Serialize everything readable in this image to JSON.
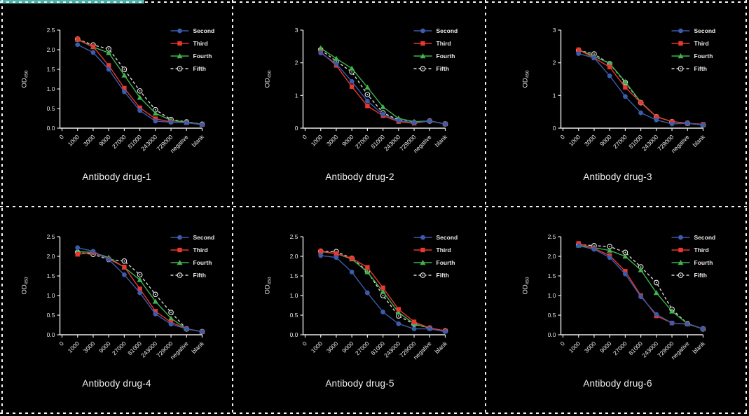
{
  "figure": {
    "background": "#000000",
    "border_color": "#f5f5f5",
    "accent_bar_color": "#4fb3ac",
    "text_color": "#eaeaea",
    "axis_color": "#e8e8e8"
  },
  "legend": {
    "position": "top-right",
    "entries": [
      {
        "label": "Second",
        "marker": "circle",
        "color": "#3b5bab",
        "dashed": false
      },
      {
        "label": "Third",
        "marker": "square",
        "color": "#e8372f",
        "dashed": false
      },
      {
        "label": "Fourth",
        "marker": "triangle",
        "color": "#41b24e",
        "dashed": false
      },
      {
        "label": "Fifth",
        "marker": "open-circle",
        "color": "#d6d6d6",
        "dashed": true
      }
    ]
  },
  "chart_data": [
    {
      "type": "line",
      "title": "Antibody drug-1",
      "ylabel": "OD",
      "ylabel_sub": "450",
      "xlabel": "",
      "grid": false,
      "ylim": [
        0,
        2.5
      ],
      "ytick_labels": [
        "0.0",
        "0.5",
        "1.0",
        "1.5",
        "2.0",
        "2.5"
      ],
      "yticks": [
        0,
        0.5,
        1.0,
        1.5,
        2.0,
        2.5
      ],
      "categories": [
        "0",
        "1000",
        "3000",
        "9000",
        "27000",
        "81000",
        "243000",
        "729000",
        "negative",
        "blank"
      ],
      "series": [
        {
          "name": "Second",
          "values": [
            2.13,
            1.93,
            1.5,
            0.93,
            0.45,
            0.18,
            0.15,
            0.14,
            0.09
          ]
        },
        {
          "name": "Third",
          "values": [
            2.27,
            2.08,
            1.6,
            1.02,
            0.52,
            0.24,
            0.16,
            0.14,
            0.09
          ]
        },
        {
          "name": "Fourth",
          "values": [
            2.26,
            2.07,
            1.92,
            1.35,
            0.78,
            0.38,
            0.2,
            0.15,
            0.1
          ]
        },
        {
          "name": "Fifth",
          "values": [
            2.27,
            2.12,
            2.02,
            1.5,
            0.95,
            0.47,
            0.22,
            0.16,
            0.1
          ]
        }
      ]
    },
    {
      "type": "line",
      "title": "Antibody drug-2",
      "ylabel": "OD",
      "ylabel_sub": "450",
      "xlabel": "",
      "grid": false,
      "ylim": [
        0,
        3
      ],
      "ytick_labels": [
        "0",
        "1",
        "2",
        "3"
      ],
      "yticks": [
        0,
        1,
        2,
        3
      ],
      "categories": [
        "0",
        "1000",
        "3000",
        "9000",
        "27000",
        "81000",
        "243000",
        "729000",
        "negative",
        "blank"
      ],
      "series": [
        {
          "name": "Second",
          "values": [
            2.3,
            1.97,
            1.43,
            0.83,
            0.42,
            0.23,
            0.17,
            0.22,
            0.13
          ]
        },
        {
          "name": "Third",
          "values": [
            2.33,
            1.92,
            1.27,
            0.68,
            0.38,
            0.2,
            0.15,
            0.22,
            0.13
          ]
        },
        {
          "name": "Fourth",
          "values": [
            2.45,
            2.13,
            1.83,
            1.25,
            0.65,
            0.3,
            0.2,
            0.22,
            0.13
          ]
        },
        {
          "name": "Fifth",
          "values": [
            2.4,
            2.05,
            1.72,
            1.03,
            0.47,
            0.25,
            0.17,
            0.22,
            0.13
          ]
        }
      ]
    },
    {
      "type": "line",
      "title": "Antibody drug-3",
      "ylabel": "OD",
      "ylabel_sub": "450",
      "xlabel": "",
      "grid": false,
      "ylim": [
        0,
        3
      ],
      "ytick_labels": [
        "0",
        "1",
        "2",
        "3"
      ],
      "yticks": [
        0,
        1,
        2,
        3
      ],
      "categories": [
        "0",
        "1000",
        "3000",
        "9000",
        "27000",
        "81000",
        "243000",
        "729000",
        "negative",
        "blank"
      ],
      "series": [
        {
          "name": "Second",
          "values": [
            2.28,
            2.15,
            1.6,
            0.97,
            0.47,
            0.25,
            0.13,
            0.15,
            0.1
          ]
        },
        {
          "name": "Third",
          "values": [
            2.4,
            2.15,
            1.87,
            1.25,
            0.78,
            0.35,
            0.2,
            0.15,
            0.12
          ]
        },
        {
          "name": "Fourth",
          "values": [
            2.4,
            2.2,
            1.98,
            1.42,
            0.8,
            0.35,
            0.2,
            0.15,
            0.1
          ]
        },
        {
          "name": "Fifth",
          "values": [
            2.38,
            2.27,
            1.97,
            1.4,
            0.78,
            0.35,
            0.2,
            0.15,
            0.1
          ]
        }
      ]
    },
    {
      "type": "line",
      "title": "Antibody drug-4",
      "ylabel": "OD",
      "ylabel_sub": "450",
      "xlabel": "",
      "grid": false,
      "ylim": [
        0,
        2.5
      ],
      "ytick_labels": [
        "0.0",
        "0.5",
        "1.0",
        "1.5",
        "2.0",
        "2.5"
      ],
      "yticks": [
        0,
        0.5,
        1.0,
        1.5,
        2.0,
        2.5
      ],
      "categories": [
        "0",
        "1000",
        "3000",
        "9000",
        "27000",
        "81000",
        "243000",
        "729000",
        "negative",
        "blank"
      ],
      "series": [
        {
          "name": "Second",
          "values": [
            2.22,
            2.13,
            1.92,
            1.53,
            1.07,
            0.53,
            0.27,
            0.15,
            0.08
          ]
        },
        {
          "name": "Third",
          "values": [
            2.05,
            2.1,
            1.93,
            1.73,
            1.17,
            0.6,
            0.32,
            0.15,
            0.08
          ]
        },
        {
          "name": "Fourth",
          "values": [
            2.12,
            2.1,
            1.97,
            1.72,
            1.4,
            0.85,
            0.42,
            0.15,
            0.08
          ]
        },
        {
          "name": "Fifth",
          "values": [
            2.1,
            2.05,
            1.92,
            1.88,
            1.53,
            1.03,
            0.57,
            0.15,
            0.08
          ]
        }
      ]
    },
    {
      "type": "line",
      "title": "Antibody drug-5",
      "ylabel": "OD",
      "ylabel_sub": "450",
      "xlabel": "",
      "grid": false,
      "ylim": [
        0,
        2.5
      ],
      "ytick_labels": [
        "0.0",
        "0.5",
        "1.0",
        "1.5",
        "2.0",
        "2.5"
      ],
      "yticks": [
        0,
        0.5,
        1.0,
        1.5,
        2.0,
        2.5
      ],
      "categories": [
        "0",
        "1000",
        "3000",
        "9000",
        "27000",
        "81000",
        "243000",
        "729000",
        "negative",
        "blank"
      ],
      "series": [
        {
          "name": "Second",
          "values": [
            2.02,
            1.97,
            1.6,
            1.07,
            0.58,
            0.28,
            0.15,
            0.15,
            0.08
          ]
        },
        {
          "name": "Third",
          "values": [
            2.13,
            2.07,
            1.95,
            1.72,
            1.2,
            0.65,
            0.33,
            0.17,
            0.1
          ]
        },
        {
          "name": "Fourth",
          "values": [
            2.12,
            2.07,
            1.93,
            1.6,
            1.1,
            0.57,
            0.28,
            0.17,
            0.1
          ]
        },
        {
          "name": "Fifth",
          "values": [
            2.13,
            2.12,
            1.95,
            1.62,
            1.0,
            0.48,
            0.27,
            0.17,
            0.1
          ]
        }
      ]
    },
    {
      "type": "line",
      "title": "Antibody drug-6",
      "ylabel": "OD",
      "ylabel_sub": "450",
      "xlabel": "",
      "grid": false,
      "ylim": [
        0,
        2.5
      ],
      "ytick_labels": [
        "0.0",
        "0.5",
        "1.0",
        "1.5",
        "2.0",
        "2.5"
      ],
      "yticks": [
        0,
        0.5,
        1.0,
        1.5,
        2.0,
        2.5
      ],
      "categories": [
        "0",
        "1000",
        "3000",
        "9000",
        "27000",
        "81000",
        "243000",
        "729000",
        "negative",
        "blank"
      ],
      "series": [
        {
          "name": "Second",
          "values": [
            2.27,
            2.18,
            1.97,
            1.55,
            0.97,
            0.52,
            0.3,
            0.27,
            0.15
          ]
        },
        {
          "name": "Third",
          "values": [
            2.33,
            2.2,
            2.02,
            1.62,
            1.0,
            0.48,
            0.3,
            0.27,
            0.15
          ]
        },
        {
          "name": "Fourth",
          "values": [
            2.28,
            2.22,
            2.15,
            2.0,
            1.65,
            1.07,
            0.6,
            0.28,
            0.15
          ]
        },
        {
          "name": "Fifth",
          "values": [
            2.3,
            2.27,
            2.25,
            2.1,
            1.73,
            1.33,
            0.65,
            0.28,
            0.15
          ]
        }
      ]
    }
  ]
}
